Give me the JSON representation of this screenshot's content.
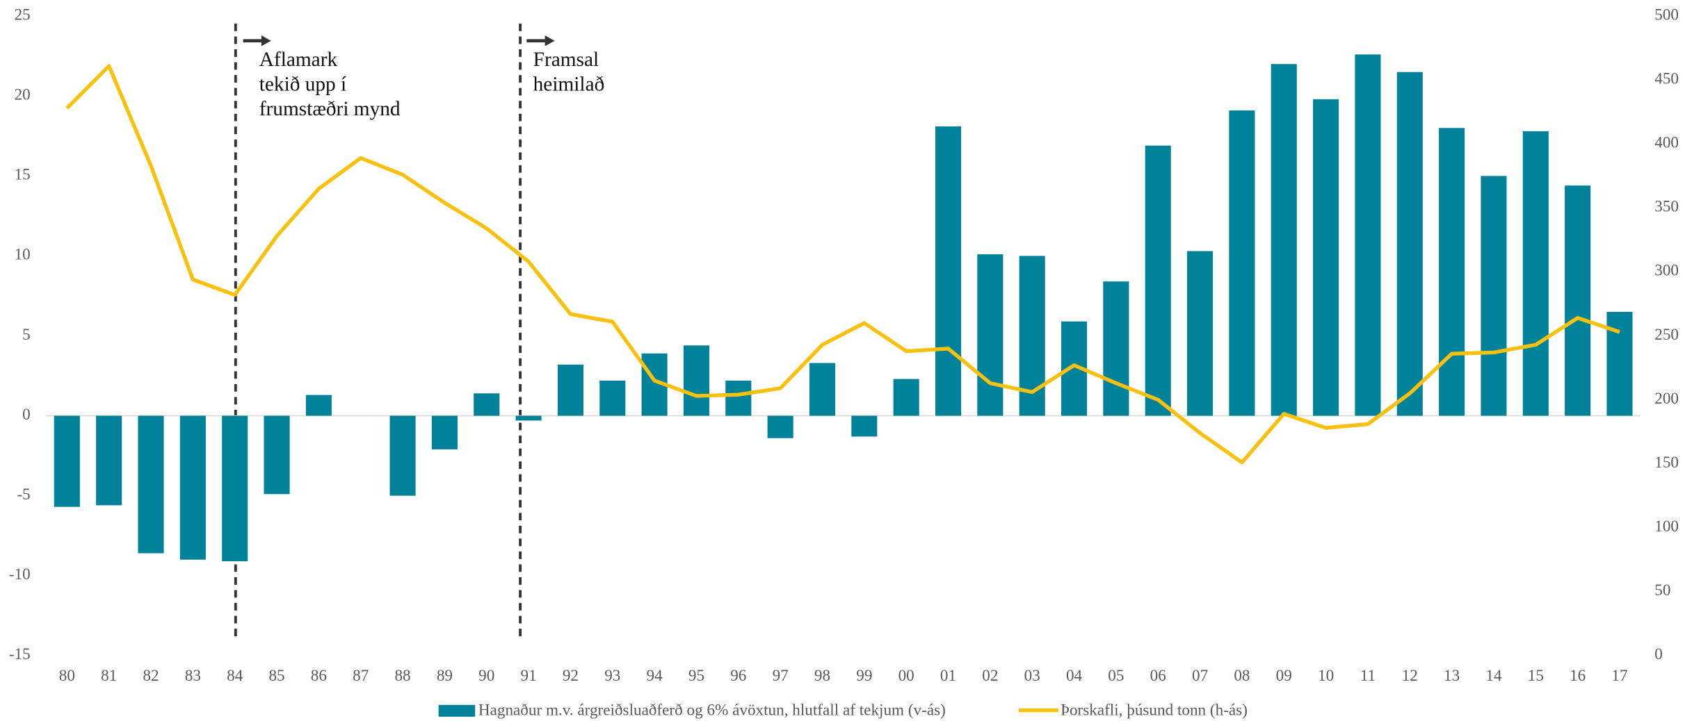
{
  "chart_data": {
    "type": "bar_line",
    "categories": [
      "80",
      "81",
      "82",
      "83",
      "84",
      "85",
      "86",
      "87",
      "88",
      "89",
      "90",
      "91",
      "92",
      "93",
      "94",
      "95",
      "96",
      "97",
      "98",
      "99",
      "00",
      "01",
      "02",
      "03",
      "04",
      "05",
      "06",
      "07",
      "08",
      "09",
      "10",
      "11",
      "12",
      "13",
      "14",
      "15",
      "16",
      "17"
    ],
    "series": [
      {
        "name": "Hagnaður m.v. árgreiðsluaðferð og 6% ávöxtun, hlutfall af tekjum (v-ás)",
        "type": "bar",
        "axis": "y",
        "color": "#00829b",
        "values": [
          -5.7,
          -5.6,
          -8.6,
          -9.0,
          -9.1,
          -4.9,
          1.3,
          0,
          -5.0,
          -2.1,
          1.4,
          -0.3,
          3.2,
          2.2,
          3.9,
          4.4,
          2.2,
          -1.4,
          3.3,
          -1.3,
          2.3,
          18.1,
          10.1,
          10.0,
          5.9,
          8.4,
          16.9,
          10.3,
          19.1,
          22.0,
          19.8,
          22.6,
          21.5,
          18.0,
          15.0,
          17.8,
          14.4,
          6.5
        ]
      },
      {
        "name": "Þorskafli, þúsund tonn  (h-ás)",
        "type": "line",
        "axis": "y2",
        "color": "#f9c10e",
        "values": [
          428,
          461,
          383,
          294,
          282,
          328,
          365,
          389,
          376,
          354,
          334,
          308,
          267,
          261,
          215,
          203,
          204,
          209,
          243,
          260,
          238,
          240,
          213,
          206,
          227,
          213,
          200,
          174,
          151,
          189,
          178,
          181,
          205,
          236,
          237,
          243,
          264,
          253
        ]
      }
    ],
    "ylim": [
      -15,
      25
    ],
    "yticks": [
      -15,
      -10,
      -5,
      0,
      5,
      10,
      15,
      20,
      25
    ],
    "y2lim": [
      0,
      500
    ],
    "y2ticks": [
      0,
      50,
      100,
      150,
      200,
      250,
      300,
      350,
      400,
      450,
      500
    ],
    "grid": false,
    "legend": "bottom",
    "annotations": [
      {
        "lines": [
          "Aflamark",
          "tekið upp í",
          "frumstæðri mynd"
        ]
      },
      {
        "lines": [
          "Framsal",
          "heimilað"
        ]
      }
    ]
  }
}
